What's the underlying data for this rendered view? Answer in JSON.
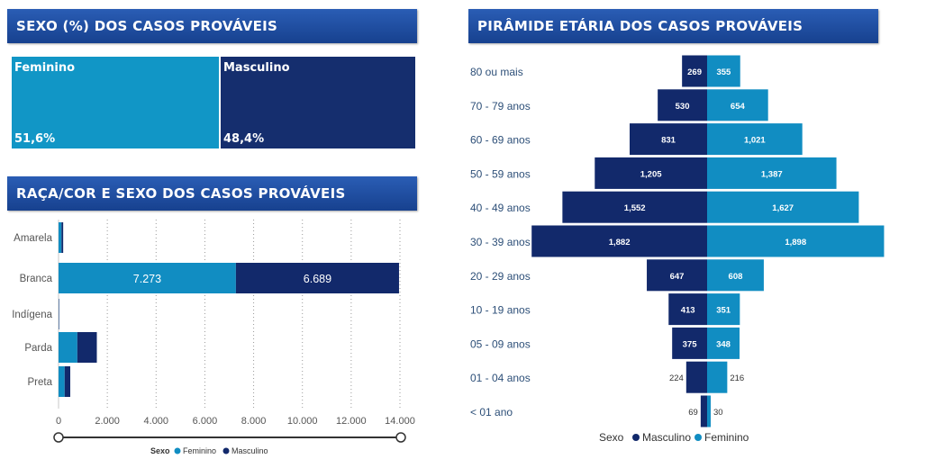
{
  "colors": {
    "feminino": "#118dc2",
    "masculino": "#12296b",
    "header": "#1f4fa3",
    "axis_text": "#555555",
    "age_label": "#2d4f78"
  },
  "sexo": {
    "title": "SEXO  (%) DOS CASOS PROVÁVEIS",
    "cells": [
      {
        "label": "Feminino",
        "value_label": "51,6%",
        "percent": 51.6,
        "color": "#1196c6"
      },
      {
        "label": "Masculino",
        "value_label": "48,4%",
        "percent": 48.4,
        "color": "#152e6e"
      }
    ]
  },
  "chart_data": [
    {
      "type": "bar",
      "orientation": "horizontal",
      "stacked": true,
      "title": "RAÇA/COR E SEXO DOS CASOS PROVÁVEIS",
      "categories": [
        "Amarela",
        "Branca",
        "Indígena",
        "Parda",
        "Preta"
      ],
      "series": [
        {
          "name": "Feminino",
          "values": [
            120,
            7273,
            5,
            770,
            250
          ],
          "labels": [
            "",
            "7.273",
            "",
            "",
            ""
          ]
        },
        {
          "name": "Masculino",
          "values": [
            70,
            6689,
            5,
            800,
            230
          ],
          "labels": [
            "",
            "6.689",
            "",
            "",
            ""
          ]
        }
      ],
      "xlim": [
        0,
        14000
      ],
      "xticks": [
        0,
        2000,
        4000,
        6000,
        8000,
        10000,
        12000,
        14000
      ],
      "xtick_labels": [
        "0",
        "2.000",
        "4.000",
        "6.000",
        "8.000",
        "10.000",
        "12.000",
        "14.000"
      ],
      "grid": "vertical-dotted",
      "legend": {
        "title": "Sexo",
        "entries": [
          "Feminino",
          "Masculino"
        ],
        "placement": "bottom-center"
      }
    },
    {
      "type": "bar",
      "orientation": "horizontal",
      "subtype": "population-pyramid",
      "title": "PIRÂMIDE ETÁRIA DOS CASOS PROVÁVEIS",
      "categories": [
        "80 ou mais",
        "70 - 79 anos",
        "60 - 69 anos",
        "50 - 59 anos",
        "40 - 49 anos",
        "30 - 39 anos",
        "20 - 29 anos",
        "10 - 19 anos",
        "05 - 09 anos",
        "01 - 04 anos",
        "< 01 ano"
      ],
      "series": [
        {
          "name": "Masculino",
          "side": "left",
          "values": [
            269,
            530,
            831,
            1205,
            1552,
            1882,
            647,
            413,
            375,
            224,
            69
          ],
          "labels": [
            "269",
            "530",
            "831",
            "1,205",
            "1,552",
            "1,882",
            "647",
            "413",
            "375",
            "224",
            "69"
          ]
        },
        {
          "name": "Feminino",
          "side": "right",
          "values": [
            355,
            654,
            1021,
            1387,
            1627,
            1898,
            608,
            351,
            348,
            216,
            30
          ],
          "labels": [
            "355",
            "654",
            "1,021",
            "1,387",
            "1,627",
            "1,898",
            "608",
            "351",
            "348",
            "216",
            "30"
          ]
        }
      ],
      "legend": {
        "title": "Sexo",
        "entries": [
          "Masculino",
          "Feminino"
        ],
        "placement": "bottom-center"
      }
    }
  ]
}
